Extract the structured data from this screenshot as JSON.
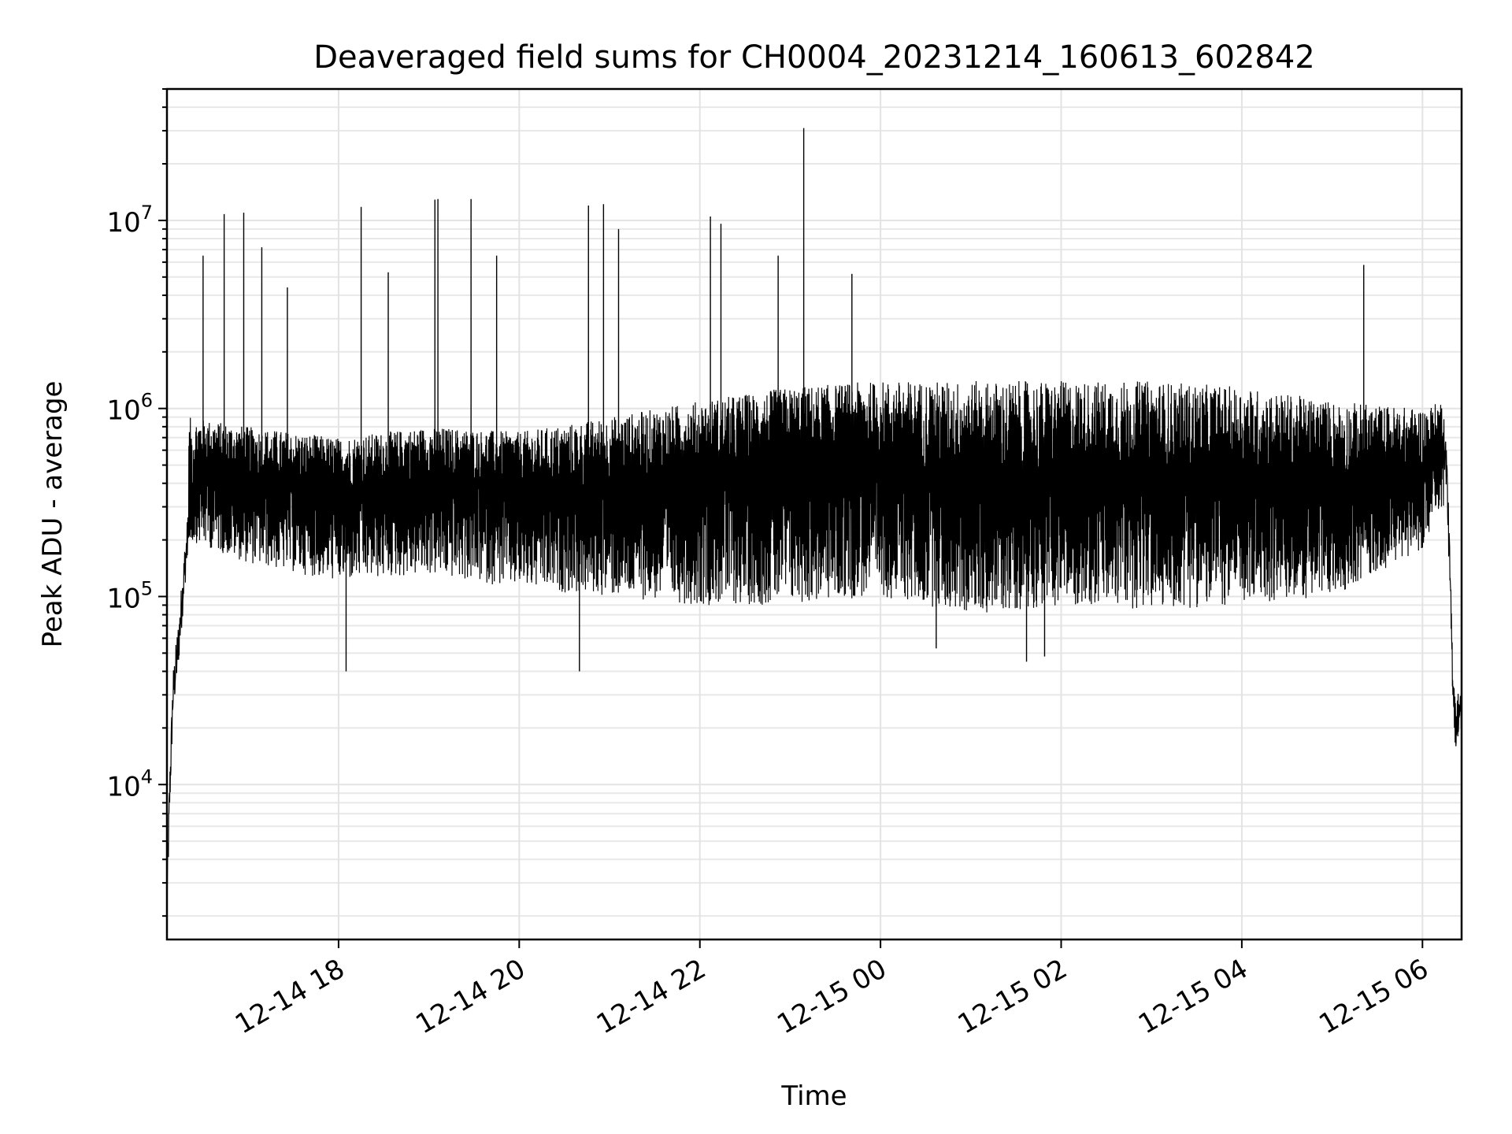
{
  "chart_data": {
    "type": "line",
    "title": "Deaveraged field sums for CH0004_20231214_160613_602842",
    "xlabel": "Time",
    "ylabel": "Peak ADU - average",
    "yscale": "log",
    "ylim": [
      1500,
      50000000
    ],
    "xlim": [
      "2023-12-14 16:06",
      "2023-12-15 06:26"
    ],
    "grid": true,
    "line_color": "#000000",
    "x_ticks": [
      {
        "t": "2023-12-14 18:00",
        "label": "12-14 18"
      },
      {
        "t": "2023-12-14 20:00",
        "label": "12-14 20"
      },
      {
        "t": "2023-12-14 22:00",
        "label": "12-14 22"
      },
      {
        "t": "2023-12-15 00:00",
        "label": "12-15 00"
      },
      {
        "t": "2023-12-15 02:00",
        "label": "12-15 02"
      },
      {
        "t": "2023-12-15 04:00",
        "label": "12-15 04"
      },
      {
        "t": "2023-12-15 06:00",
        "label": "12-15 06"
      }
    ],
    "y_ticks": [
      {
        "value": 10000,
        "base": "10",
        "exp": "4"
      },
      {
        "value": 100000,
        "base": "10",
        "exp": "5"
      },
      {
        "value": 1000000,
        "base": "10",
        "exp": "6"
      },
      {
        "value": 10000000,
        "base": "10",
        "exp": "7"
      }
    ],
    "series": [
      {
        "x": [
          "2023-12-14 16:06",
          "2023-12-14 16:08",
          "2023-12-14 16:10",
          "2023-12-14 16:14",
          "2023-12-14 16:18",
          "2023-12-14 16:22",
          "2023-12-14 16:26",
          "2023-12-14 16:30",
          "2023-12-14 16:40",
          "2023-12-14 17:00",
          "2023-12-14 17:30",
          "2023-12-14 18:00",
          "2023-12-14 18:30",
          "2023-12-14 19:00",
          "2023-12-14 19:30",
          "2023-12-14 20:00",
          "2023-12-14 20:30",
          "2023-12-14 21:00",
          "2023-12-14 21:30",
          "2023-12-14 22:00",
          "2023-12-14 22:30",
          "2023-12-14 23:00",
          "2023-12-14 23:30",
          "2023-12-15 00:00",
          "2023-12-15 00:30",
          "2023-12-15 01:00",
          "2023-12-15 01:30",
          "2023-12-15 02:00",
          "2023-12-15 02:30",
          "2023-12-15 03:00",
          "2023-12-15 03:30",
          "2023-12-15 04:00",
          "2023-12-15 04:30",
          "2023-12-15 05:00",
          "2023-12-15 05:30",
          "2023-12-15 06:00",
          "2023-12-15 06:10",
          "2023-12-15 06:14",
          "2023-12-15 06:16",
          "2023-12-15 06:18",
          "2023-12-15 06:20",
          "2023-12-15 06:22",
          "2023-12-15 06:24",
          "2023-12-15 06:26"
        ],
        "y": [
          2500,
          10000,
          30000,
          60000,
          150000,
          300000,
          450000,
          500000,
          450000,
          400000,
          380000,
          350000,
          380000,
          420000,
          400000,
          380000,
          350000,
          380000,
          400000,
          420000,
          450000,
          480000,
          500000,
          500000,
          450000,
          420000,
          380000,
          420000,
          450000,
          420000,
          400000,
          420000,
          400000,
          380000,
          400000,
          450000,
          600000,
          700000,
          500000,
          150000,
          40000,
          20000,
          25000,
          22000
        ]
      }
    ],
    "upper_envelope": {
      "x": [
        "2023-12-14 16:20",
        "2023-12-14 17:00",
        "2023-12-14 18:00",
        "2023-12-14 19:00",
        "2023-12-14 20:00",
        "2023-12-14 21:00",
        "2023-12-14 22:00",
        "2023-12-14 23:00",
        "2023-12-15 00:00",
        "2023-12-15 01:00",
        "2023-12-15 02:00",
        "2023-12-15 03:00",
        "2023-12-15 04:00",
        "2023-12-15 05:00",
        "2023-12-15 06:00",
        "2023-12-15 06:14"
      ],
      "y": [
        900000,
        800000,
        700000,
        800000,
        750000,
        900000,
        1100000,
        1300000,
        1400000,
        1400000,
        1400000,
        1400000,
        1300000,
        1100000,
        1000000,
        1100000
      ]
    },
    "lower_envelope": {
      "x": [
        "2023-12-14 16:20",
        "2023-12-14 17:00",
        "2023-12-14 18:00",
        "2023-12-14 19:00",
        "2023-12-14 20:00",
        "2023-12-14 21:00",
        "2023-12-14 22:00",
        "2023-12-14 23:00",
        "2023-12-15 00:00",
        "2023-12-15 01:00",
        "2023-12-15 02:00",
        "2023-12-15 03:00",
        "2023-12-15 04:00",
        "2023-12-15 05:00",
        "2023-12-15 06:00",
        "2023-12-15 06:14"
      ],
      "y": [
        200000,
        150000,
        120000,
        130000,
        110000,
        100000,
        90000,
        90000,
        100000,
        80000,
        90000,
        85000,
        90000,
        100000,
        180000,
        300000
      ]
    },
    "spikes": [
      {
        "t": "2023-12-14 16:30",
        "y": 6500000
      },
      {
        "t": "2023-12-14 16:44",
        "y": 10800000
      },
      {
        "t": "2023-12-14 16:57",
        "y": 11000000
      },
      {
        "t": "2023-12-14 17:09",
        "y": 7200000
      },
      {
        "t": "2023-12-14 17:26",
        "y": 4400000
      },
      {
        "t": "2023-12-14 18:15",
        "y": 11800000
      },
      {
        "t": "2023-12-14 18:33",
        "y": 5300000
      },
      {
        "t": "2023-12-14 19:04",
        "y": 12900000
      },
      {
        "t": "2023-12-14 19:06",
        "y": 13000000
      },
      {
        "t": "2023-12-14 19:28",
        "y": 13000000
      },
      {
        "t": "2023-12-14 19:45",
        "y": 6500000
      },
      {
        "t": "2023-12-14 20:46",
        "y": 12000000
      },
      {
        "t": "2023-12-14 20:56",
        "y": 12200000
      },
      {
        "t": "2023-12-14 21:06",
        "y": 9000000
      },
      {
        "t": "2023-12-14 22:07",
        "y": 10500000
      },
      {
        "t": "2023-12-14 22:14",
        "y": 9600000
      },
      {
        "t": "2023-12-14 22:52",
        "y": 6500000
      },
      {
        "t": "2023-12-14 23:09",
        "y": 31000000
      },
      {
        "t": "2023-12-14 23:41",
        "y": 5200000
      },
      {
        "t": "2023-12-15 05:21",
        "y": 5800000
      }
    ],
    "dips": [
      {
        "t": "2023-12-14 18:05",
        "y": 40000
      },
      {
        "t": "2023-12-14 20:40",
        "y": 40000
      },
      {
        "t": "2023-12-15 01:37",
        "y": 45000
      },
      {
        "t": "2023-12-15 00:37",
        "y": 53000
      },
      {
        "t": "2023-12-15 01:49",
        "y": 48000
      }
    ]
  }
}
